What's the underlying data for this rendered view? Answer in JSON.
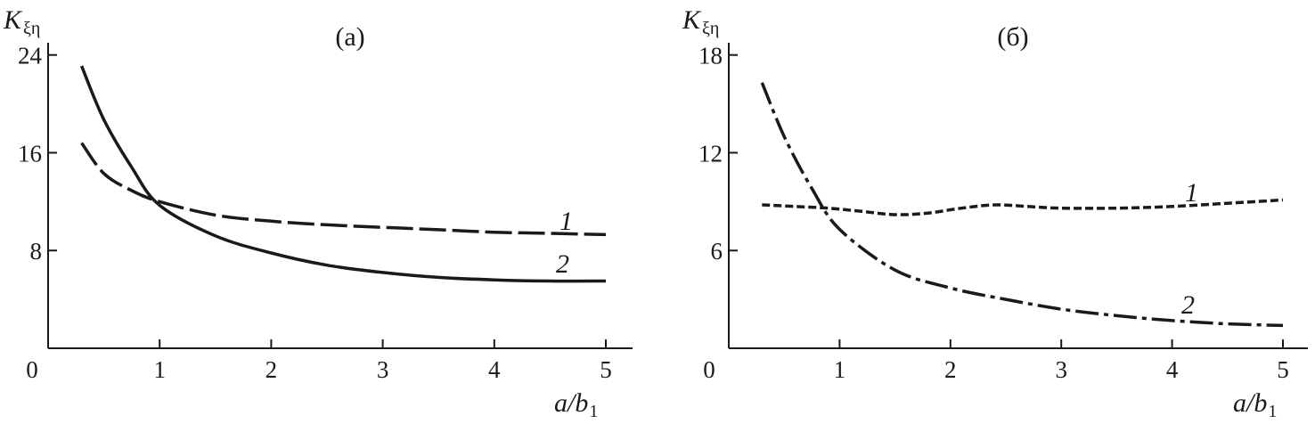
{
  "chart_data": [
    {
      "type": "line",
      "title": "(а)",
      "ylabel": "K",
      "ylabel_sub": "ξη",
      "xlabel": "a/b",
      "xlabel_sub": "1",
      "xlim": [
        0,
        5.25
      ],
      "ylim": [
        0,
        25
      ],
      "xticks": [
        0,
        1,
        2,
        3,
        4,
        5
      ],
      "yticks": [
        8,
        16,
        24
      ],
      "grid": false,
      "series": [
        {
          "name": "1",
          "style": "long-dash",
          "x": [
            0.3,
            0.5,
            0.75,
            1.0,
            1.5,
            2.0,
            2.5,
            3.0,
            3.5,
            4.0,
            4.5,
            5.0
          ],
          "y": [
            16.8,
            14.3,
            12.9,
            12.0,
            10.9,
            10.4,
            10.1,
            9.9,
            9.7,
            9.5,
            9.4,
            9.3
          ]
        },
        {
          "name": "2",
          "style": "solid",
          "x": [
            0.3,
            0.5,
            0.75,
            1.0,
            1.5,
            2.0,
            2.5,
            3.0,
            3.5,
            4.0,
            4.5,
            5.0
          ],
          "y": [
            23.1,
            18.7,
            14.8,
            11.7,
            9.2,
            7.8,
            6.8,
            6.2,
            5.8,
            5.6,
            5.5,
            5.5
          ]
        }
      ]
    },
    {
      "type": "line",
      "title": "(б)",
      "ylabel": "K",
      "ylabel_sub": "ξη",
      "xlabel": "a/b",
      "xlabel_sub": "1",
      "xlim": [
        0,
        5.25
      ],
      "ylim": [
        0,
        18.75
      ],
      "xticks": [
        0,
        1,
        2,
        3,
        4,
        5
      ],
      "yticks": [
        6,
        12,
        18
      ],
      "grid": false,
      "series": [
        {
          "name": "1",
          "style": "short-dash",
          "x": [
            0.3,
            0.6,
            0.9,
            1.2,
            1.5,
            1.8,
            2.1,
            2.4,
            2.7,
            3.0,
            3.5,
            4.0,
            4.5,
            5.0
          ],
          "y": [
            8.8,
            8.7,
            8.6,
            8.4,
            8.2,
            8.3,
            8.6,
            8.8,
            8.7,
            8.6,
            8.6,
            8.7,
            8.9,
            9.1
          ]
        },
        {
          "name": "2",
          "style": "dash-dot",
          "x": [
            0.3,
            0.5,
            0.75,
            1.0,
            1.5,
            2.0,
            2.5,
            3.0,
            3.5,
            4.0,
            4.5,
            5.0
          ],
          "y": [
            16.3,
            13.0,
            9.8,
            7.3,
            4.8,
            3.7,
            3.0,
            2.4,
            2.0,
            1.7,
            1.5,
            1.4
          ]
        }
      ]
    }
  ]
}
